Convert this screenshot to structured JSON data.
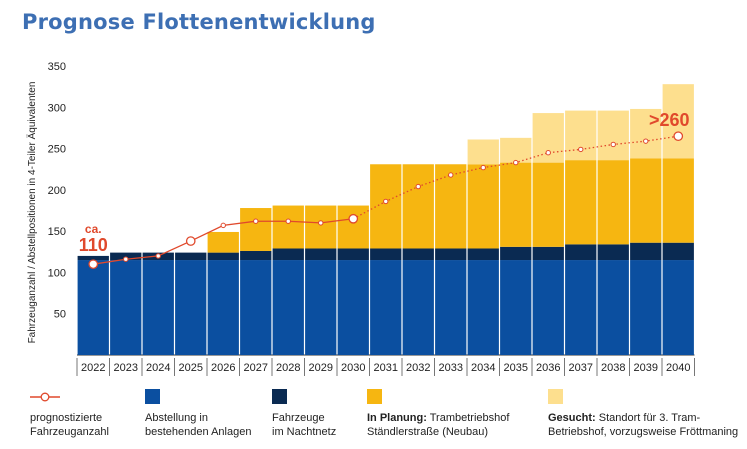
{
  "title": "Prognose Flottenentwicklung",
  "chart_data": {
    "type": "bar",
    "ylabel": "Fahrzeuganzahl / Abstellpositionen in 4-Teiler Äquivalenten",
    "ylim": [
      0,
      360
    ],
    "yticks": [
      50,
      100,
      150,
      200,
      250,
      300,
      350
    ],
    "categories": [
      "2022",
      "2023",
      "2024",
      "2025",
      "2026",
      "2027",
      "2028",
      "2029",
      "2030",
      "2031",
      "2032",
      "2033",
      "2034",
      "2035",
      "2036",
      "2037",
      "2038",
      "2039",
      "2040"
    ],
    "series": [
      {
        "name": "Abstellung in bestehenden Anlagen",
        "color": "#0b4fa0",
        "values": [
          115,
          115,
          115,
          115,
          115,
          115,
          115,
          115,
          115,
          115,
          115,
          115,
          115,
          115,
          115,
          115,
          115,
          115,
          115
        ]
      },
      {
        "name": "Fahrzeuge im Nachtnetz",
        "color": "#0a2a52",
        "values": [
          5,
          9,
          9,
          9,
          9,
          11,
          14,
          14,
          14,
          14,
          14,
          14,
          14,
          16,
          16,
          19,
          19,
          21,
          21
        ]
      },
      {
        "name": "In Planung: Trambetriebshof Ständlerstraße (Neubau)",
        "color": "#f6b611",
        "values": [
          0,
          0,
          0,
          0,
          25,
          52,
          52,
          52,
          52,
          102,
          102,
          102,
          102,
          102,
          102,
          102,
          102,
          102,
          102
        ]
      },
      {
        "name": "Gesucht: Standort für 3. Tram-Betriebshof, vorzugsweise Fröttmaning",
        "color": "#fddf8e",
        "values": [
          0,
          0,
          0,
          0,
          0,
          0,
          0,
          0,
          0,
          0,
          0,
          0,
          30,
          30,
          60,
          60,
          60,
          60,
          90
        ]
      }
    ],
    "line": {
      "name": "prognostizierte Fahrzeuganzahl",
      "color": "#e0492c",
      "values": [
        110,
        116,
        120,
        138,
        157,
        162,
        162,
        160,
        165,
        186,
        204,
        218,
        227,
        233,
        245,
        249,
        255,
        259,
        265
      ],
      "highlighted_years": [
        "2022",
        "2025",
        "2030",
        "2040"
      ]
    },
    "annotations": [
      {
        "category": "2022",
        "prefix": "ca.",
        "text": "110",
        "color": "#e0492c"
      },
      {
        "category": "2040",
        "prefix": "",
        "text": ">260",
        "color": "#e0492c"
      }
    ]
  },
  "legend": [
    {
      "type": "line",
      "swatch": "line",
      "label_bold": "",
      "label": "prognostizierte\nFahrzeuganzahl"
    },
    {
      "type": "box",
      "swatch": "#0b4fa0",
      "label_bold": "",
      "label": "Abstellung in\nbestehenden Anlagen"
    },
    {
      "type": "box",
      "swatch": "#0a2a52",
      "label_bold": "",
      "label": "Fahrzeuge\nim Nachtnetz"
    },
    {
      "type": "box",
      "swatch": "#f6b611",
      "label_bold": "In Planung:",
      "label": " Trambetriebshof\nStändlerstraße (Neubau)"
    },
    {
      "type": "box",
      "swatch": "#fddf8e",
      "label_bold": "Gesucht:",
      "label": " Standort für 3. Tram-\nBetriebshof, vorzugsweise Fröttmaning"
    }
  ]
}
